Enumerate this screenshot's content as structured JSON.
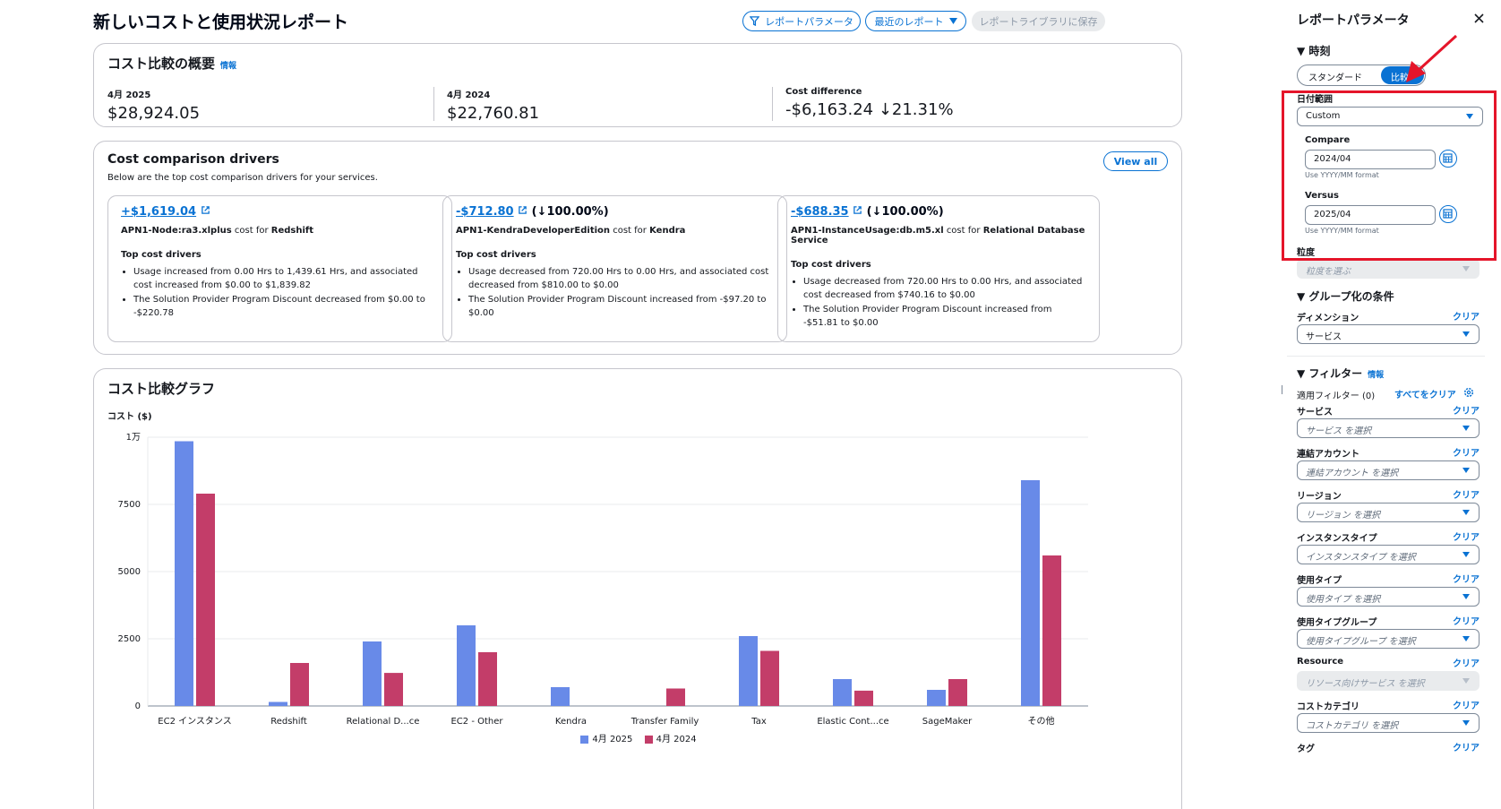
{
  "page": {
    "title": "新しいコストと使用状況レポート",
    "buttons": {
      "report_params": "レポートパラメータ",
      "recent_reports": "最近のレポート",
      "save_library": "レポートライブラリに保存"
    }
  },
  "summary": {
    "title": "コスト比較の概要",
    "info": "情報",
    "cols": [
      {
        "label": "4月 2025",
        "value": "$28,924.05"
      },
      {
        "label": "4月 2024",
        "value": "$22,760.81"
      },
      {
        "label": "Cost difference",
        "value": "-$6,163.24 ↓21.31%"
      }
    ]
  },
  "drivers": {
    "title": "Cost comparison drivers",
    "subtitle": "Below are the top cost comparison drivers for your services.",
    "view_all": "View all",
    "top_label": "Top cost drivers",
    "cards": [
      {
        "amount": "+$1,619.04",
        "pct": "",
        "usage": "APN1-Node:ra3.xlplus",
        "cost_for": "cost for",
        "service": "Redshift",
        "bullets": [
          "Usage increased from 0.00 Hrs to 1,439.61 Hrs, and associated cost increased from $0.00 to $1,839.82",
          "The Solution Provider Program Discount decreased from $0.00 to -$220.78"
        ]
      },
      {
        "amount": "-$712.80",
        "pct": "(↓100.00%)",
        "usage": "APN1-KendraDeveloperEdition",
        "cost_for": "cost for",
        "service": "Kendra",
        "bullets": [
          "Usage decreased from 720.00 Hrs to 0.00 Hrs, and associated cost decreased from $810.00 to $0.00",
          "The Solution Provider Program Discount increased from -$97.20 to $0.00"
        ]
      },
      {
        "amount": "-$688.35",
        "pct": "(↓100.00%)",
        "usage": "APN1-InstanceUsage:db.m5.xl",
        "cost_for": "cost for",
        "service": "Relational Database Service",
        "bullets": [
          "Usage decreased from 720.00 Hrs to 0.00 Hrs, and associated cost decreased from $740.16 to $0.00",
          "The Solution Provider Program Discount increased from -$51.81 to $0.00"
        ]
      }
    ]
  },
  "chart_panel": {
    "title": "コスト比較グラフ"
  },
  "chart_data": {
    "type": "bar",
    "ylabel": "コスト ($)",
    "ylim": [
      0,
      10000
    ],
    "yticks": [
      "0",
      "2500",
      "5000",
      "7500",
      "1万"
    ],
    "categories": [
      "EC2 インスタンス",
      "Redshift",
      "Relational D...ce",
      "EC2 - Other",
      "Kendra",
      "Transfer Family",
      "Tax",
      "Elastic Cont...ce",
      "SageMaker",
      "その他"
    ],
    "series": [
      {
        "name": "4月 2025",
        "color": "#688ae8",
        "values": [
          9850,
          150,
          2400,
          3000,
          700,
          0,
          2600,
          1000,
          600,
          8400
        ]
      },
      {
        "name": "4月 2024",
        "color": "#c33d69",
        "values": [
          7900,
          1600,
          1230,
          2000,
          0,
          650,
          2050,
          570,
          1000,
          5600
        ]
      }
    ],
    "legend": "bottom",
    "grid": true
  },
  "side": {
    "title": "レポートパラメータ",
    "time": {
      "head": "時刻",
      "toggle": [
        "スタンダード",
        "比較"
      ]
    },
    "date_range": {
      "label": "日付範囲",
      "value": "Custom",
      "compare_label": "Compare",
      "compare_value": "2024/04",
      "versus_label": "Versus",
      "versus_value": "2025/04",
      "hint": "Use YYYY/MM format"
    },
    "granularity": {
      "label": "粒度",
      "placeholder": "粒度を選ぶ"
    },
    "group": {
      "head": "グループ化の条件",
      "dimension_label": "ディメンション",
      "dimension_value": "サービス",
      "clear": "クリア"
    },
    "filters": {
      "head": "フィルター",
      "info": "情報",
      "applied": "適用フィルター (0)",
      "clear_all": "すべてをクリア",
      "items": [
        {
          "label": "サービス",
          "placeholder": "サービス を選択"
        },
        {
          "label": "連結アカウント",
          "placeholder": "連結アカウント を選択"
        },
        {
          "label": "リージョン",
          "placeholder": "リージョン を選択"
        },
        {
          "label": "インスタンスタイプ",
          "placeholder": "インスタンスタイプ を選択"
        },
        {
          "label": "使用タイプ",
          "placeholder": "使用タイプ を選択"
        },
        {
          "label": "使用タイプグループ",
          "placeholder": "使用タイプグループ を選択"
        },
        {
          "label": "Resource",
          "placeholder": "リソース向けサービス を選択"
        },
        {
          "label": "コストカテゴリ",
          "placeholder": "コストカテゴリ を選択"
        },
        {
          "label": "タグ",
          "placeholder": ""
        }
      ]
    }
  }
}
